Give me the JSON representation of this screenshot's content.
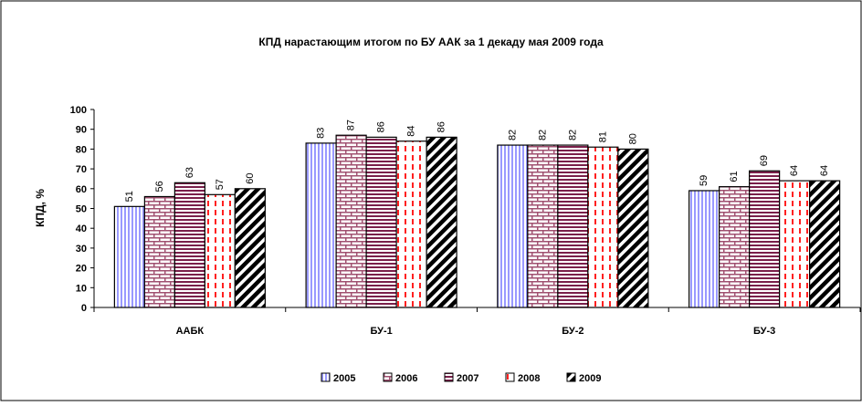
{
  "chart_data": {
    "type": "bar",
    "title": "КПД нарастающим итогом по БУ ААК за 1 декаду мая 2009 года",
    "xlabel": "",
    "ylabel": "КПД, %",
    "ylim": [
      0,
      100
    ],
    "yticks": [
      0,
      10,
      20,
      30,
      40,
      50,
      60,
      70,
      80,
      90,
      100
    ],
    "categories": [
      "ААБК",
      "БУ-1",
      "БУ-2",
      "БУ-3"
    ],
    "series": [
      {
        "name": "2005",
        "values": [
          51,
          83,
          82,
          59
        ],
        "color": "#b3b3ff",
        "pattern": "vertical-lines"
      },
      {
        "name": "2006",
        "values": [
          56,
          87,
          82,
          61
        ],
        "color": "#a05070",
        "pattern": "bricks"
      },
      {
        "name": "2007",
        "values": [
          63,
          86,
          82,
          69
        ],
        "color": "#7a1f4a",
        "pattern": "horizontal-lines"
      },
      {
        "name": "2008",
        "values": [
          57,
          84,
          81,
          64
        ],
        "color": "#ff2020",
        "pattern": "dashed-vertical"
      },
      {
        "name": "2009",
        "values": [
          60,
          86,
          80,
          64
        ],
        "color": "#000000",
        "pattern": "diagonal-stripes"
      }
    ],
    "grid": false,
    "legend_position": "bottom"
  }
}
